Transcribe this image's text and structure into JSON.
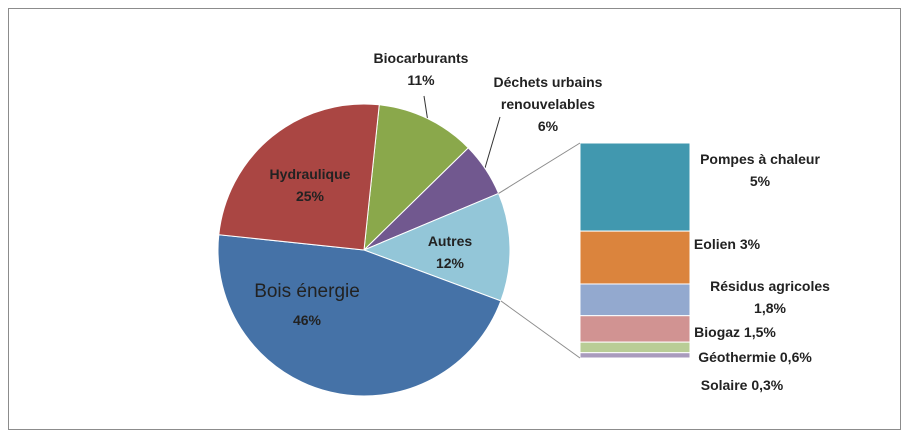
{
  "chart_data": {
    "type": "pie-of-bar",
    "categories": [
      "Biocarburants",
      "Déchets urbains renouvelables",
      "Autres",
      "Bois énergie",
      "Hydraulique"
    ],
    "values": [
      11,
      6,
      12,
      46,
      25
    ],
    "value_labels": [
      "11%",
      "6%",
      "12%",
      "46%",
      "25%"
    ],
    "colors": [
      "#8aa84b",
      "#71588f",
      "#93c6d8",
      "#4572a7",
      "#aa4643"
    ],
    "bar": {
      "categories": [
        "Pompes à chaleur",
        "Eolien",
        "Résidus agricoles",
        "Biogaz",
        "Géothermie",
        "Solaire"
      ],
      "values": [
        5,
        3,
        1.8,
        1.5,
        0.6,
        0.3
      ],
      "value_labels": [
        "5%",
        "3%",
        "1,8%",
        "1,5%",
        "0,6%",
        "0,3%"
      ],
      "colors": [
        "#4198af",
        "#db843d",
        "#93a9cf",
        "#d19392",
        "#b9cd96",
        "#a99bbd"
      ]
    }
  }
}
